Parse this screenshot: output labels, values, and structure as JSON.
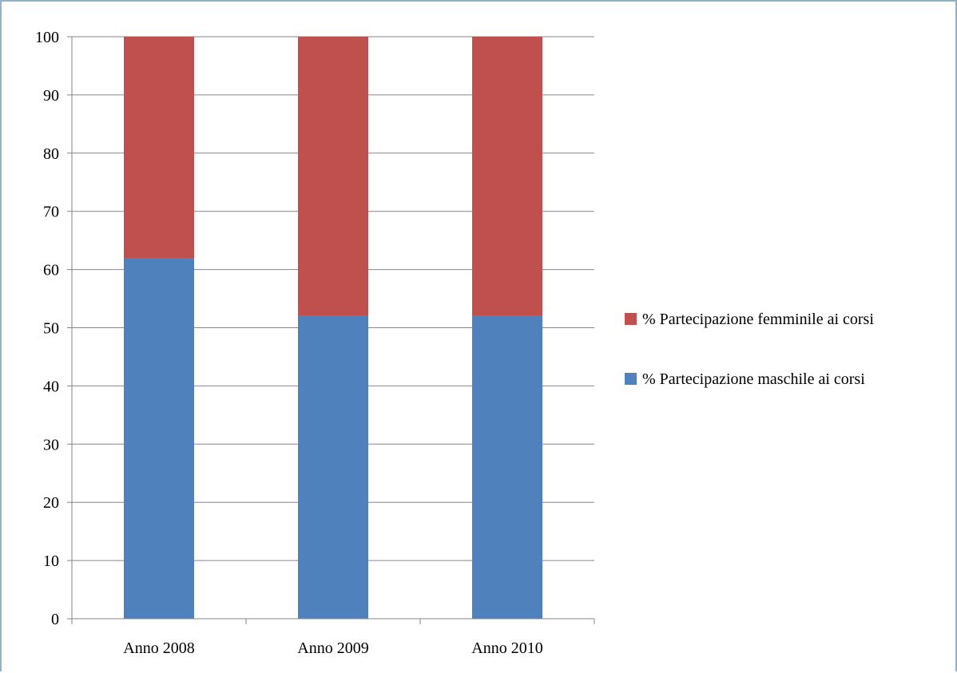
{
  "chart_data": {
    "type": "bar",
    "stacked": true,
    "categories": [
      "Anno 2008",
      "Anno 2009",
      "Anno 2010"
    ],
    "series": [
      {
        "name": "% Partecipazione maschile ai corsi",
        "values": [
          62,
          52,
          52
        ],
        "color": "#4f81bd"
      },
      {
        "name": "% Partecipazione femminile ai corsi",
        "values": [
          38,
          48,
          48
        ],
        "color": "#c0504d"
      }
    ],
    "title": "",
    "xlabel": "",
    "ylabel": "",
    "ylim": [
      0,
      100
    ],
    "yticks": [
      "0",
      "10",
      "20",
      "30",
      "40",
      "50",
      "60",
      "70",
      "80",
      "90",
      "100"
    ],
    "grid": true,
    "legend_position": "right"
  }
}
